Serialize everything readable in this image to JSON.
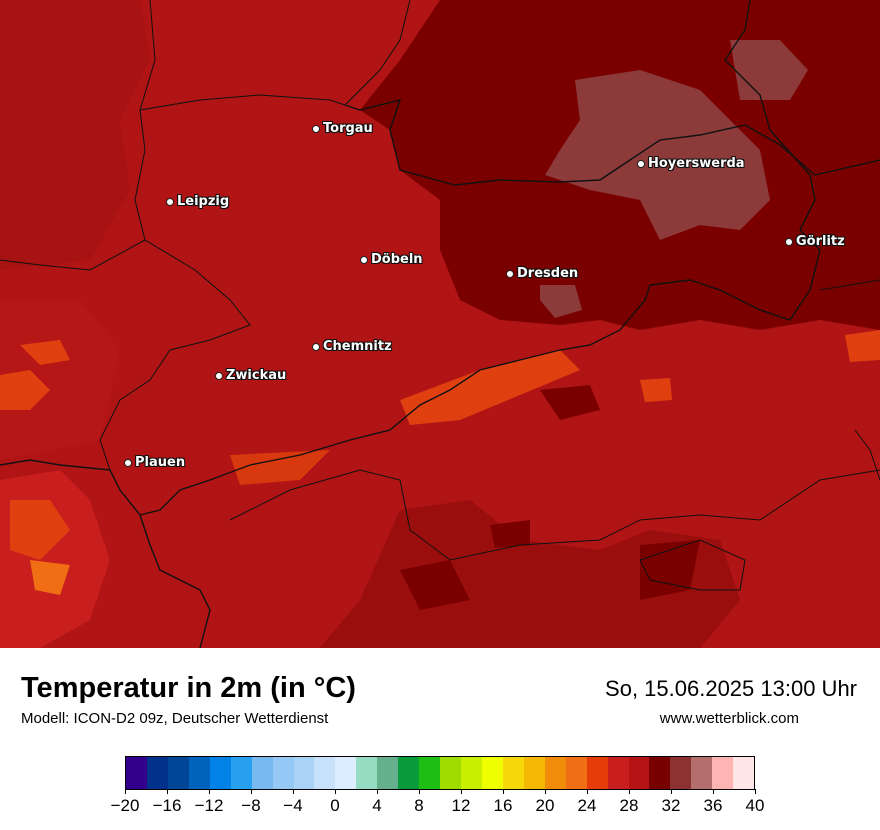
{
  "map": {
    "base_color": "#b01414",
    "cities": [
      {
        "name": "Torgau"
      },
      {
        "name": "Leipzig"
      },
      {
        "name": "Hoyerswerda"
      },
      {
        "name": "Görlitz"
      },
      {
        "name": "Döbeln"
      },
      {
        "name": "Dresden"
      },
      {
        "name": "Chemnitz"
      },
      {
        "name": "Zwickau"
      },
      {
        "name": "Plauen"
      }
    ]
  },
  "footer": {
    "title": "Temperatur in 2m (in °C)",
    "subtitle": "Modell: ICON-D2 09z, Deutscher Wetterdienst",
    "datetime": "So, 15.06.2025 13:00 Uhr",
    "website": "www.wetterblick.com"
  },
  "legend": {
    "colors": [
      "#32008c",
      "#00328c",
      "#004696",
      "#0064be",
      "#0082e6",
      "#28a0f0",
      "#78b9f0",
      "#96c8f5",
      "#aad2f5",
      "#c8e1fa",
      "#dcedff",
      "#96dcc3",
      "#64af8c",
      "#0a9b3c",
      "#1ebe14",
      "#a0dc00",
      "#c8ee00",
      "#f0ff00",
      "#f5d70a",
      "#f5b905",
      "#f08c0a",
      "#f06e14",
      "#e63c0a",
      "#c81e1e",
      "#b41414",
      "#780000",
      "#8c3232",
      "#b46e6e",
      "#ffb4b4",
      "#ffe6e6"
    ],
    "tick_labels": [
      "−20",
      "−16",
      "−12",
      "−8",
      "−4",
      "0",
      "4",
      "8",
      "12",
      "16",
      "20",
      "24",
      "28",
      "32",
      "36",
      "40"
    ]
  }
}
